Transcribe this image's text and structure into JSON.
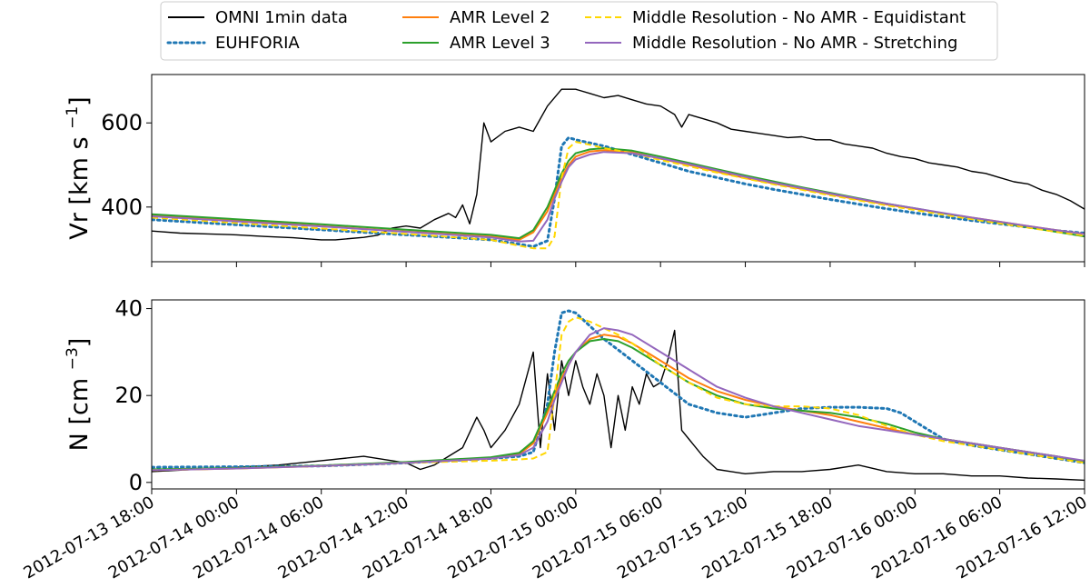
{
  "chart_data": {
    "type": "line",
    "legend": {
      "placement": "top-center",
      "entries": [
        {
          "label": "OMNI 1min data",
          "color": "#000000",
          "style": "solid"
        },
        {
          "label": "EUHFORIA",
          "color": "#1f77b4",
          "style": "dotted"
        },
        {
          "label": "AMR Level 2",
          "color": "#ff7f0e",
          "style": "solid"
        },
        {
          "label": "AMR Level 3",
          "color": "#2ca02c",
          "style": "solid"
        },
        {
          "label": "Middle Resolution - No AMR - Equidistant",
          "color": "#ffd700",
          "style": "dashed"
        },
        {
          "label": "Middle Resolution - No AMR - Stretching",
          "color": "#9467bd",
          "style": "solid"
        }
      ]
    },
    "x_ticks": [
      "2012-07-13 18:00",
      "2012-07-14 00:00",
      "2012-07-14 06:00",
      "2012-07-14 12:00",
      "2012-07-14 18:00",
      "2012-07-15 00:00",
      "2012-07-15 06:00",
      "2012-07-15 12:00",
      "2012-07-15 18:00",
      "2012-07-16 00:00",
      "2012-07-16 06:00",
      "2012-07-16 12:00"
    ],
    "x_unit_hours": [
      0,
      6,
      12,
      18,
      24,
      30,
      36,
      42,
      48,
      54,
      60,
      66
    ],
    "xlim_hours": [
      0,
      66
    ],
    "panels": [
      {
        "ylabel": "Vr [km s",
        "ylabel_sup": "−1",
        "ylabel_end": "]",
        "ylim": [
          270,
          715
        ],
        "yticks": [
          400,
          600
        ],
        "series": [
          {
            "name": "OMNI 1min data",
            "x": [
              0,
              2,
              4,
              6,
              8,
              10,
              12,
              13,
              15,
              16,
              17,
              18,
              19,
              20,
              21,
              21.5,
              22,
              22.5,
              23,
              23.5,
              24,
              25,
              26,
              27,
              28,
              29,
              30,
              31,
              32,
              33,
              34,
              35,
              36,
              37,
              37.5,
              38,
              39,
              40,
              41,
              42,
              43,
              44,
              45,
              46,
              47,
              48,
              49,
              50,
              51,
              52,
              53,
              54,
              55,
              56,
              57,
              58,
              59,
              60,
              61,
              62,
              63,
              64,
              65,
              66
            ],
            "y": [
              343,
              338,
              336,
              334,
              330,
              327,
              322,
              322,
              328,
              333,
              350,
              355,
              350,
              370,
              385,
              375,
              405,
              360,
              430,
              600,
              555,
              580,
              590,
              580,
              640,
              680,
              680,
              670,
              660,
              665,
              655,
              645,
              640,
              620,
              590,
              620,
              610,
              600,
              585,
              580,
              575,
              570,
              565,
              567,
              560,
              560,
              550,
              545,
              540,
              528,
              520,
              515,
              505,
              500,
              495,
              485,
              480,
              470,
              460,
              455,
              440,
              430,
              415,
              395
            ]
          },
          {
            "name": "EUHFORIA",
            "x": [
              0,
              6,
              12,
              18,
              24,
              26,
              27,
              28,
              28.5,
              29,
              29.5,
              30,
              32,
              34,
              36,
              38,
              40,
              42,
              44,
              46,
              48,
              50,
              52,
              54,
              56,
              58,
              60,
              62,
              64,
              66
            ],
            "y": [
              370,
              358,
              346,
              334,
              322,
              312,
              306,
              320,
              420,
              545,
              565,
              560,
              545,
              525,
              505,
              485,
              470,
              455,
              442,
              430,
              418,
              407,
              396,
              386,
              377,
              368,
              360,
              352,
              344,
              338
            ]
          },
          {
            "name": "AMR Level 2",
            "x": [
              0,
              6,
              12,
              18,
              24,
              26,
              27,
              28,
              28.5,
              29,
              29.5,
              30,
              31,
              32,
              34,
              36,
              38,
              40,
              42,
              44,
              46,
              48,
              50,
              52,
              54,
              56,
              58,
              60,
              62,
              64,
              66
            ],
            "y": [
              380,
              368,
              355,
              342,
              330,
              322,
              340,
              390,
              430,
              470,
              500,
              520,
              532,
              535,
              530,
              515,
              500,
              484,
              469,
              456,
              443,
              430,
              418,
              406,
              396,
              385,
              375,
              365,
              355,
              345,
              336
            ]
          },
          {
            "name": "AMR Level 3",
            "x": [
              0,
              6,
              12,
              18,
              24,
              26,
              27,
              28,
              28.5,
              29,
              29.5,
              30,
              31,
              32,
              34,
              36,
              38,
              40,
              42,
              44,
              46,
              48,
              50,
              52,
              54,
              56,
              58,
              60,
              62,
              64,
              66
            ],
            "y": [
              383,
              371,
              359,
              346,
              334,
              326,
              345,
              400,
              440,
              480,
              510,
              528,
              537,
              540,
              534,
              520,
              505,
              490,
              475,
              461,
              447,
              434,
              421,
              408,
              397,
              385,
              374,
              363,
              352,
              341,
              330
            ]
          },
          {
            "name": "Middle Resolution - No AMR - Equidistant",
            "x": [
              0,
              6,
              12,
              18,
              24,
              26,
              27,
              28,
              28.5,
              29,
              29.5,
              30,
              31,
              32,
              34,
              36,
              38,
              40,
              42,
              44,
              46,
              48,
              50,
              52,
              54,
              56,
              58,
              60,
              62,
              64,
              66
            ],
            "y": [
              375,
              362,
              349,
              336,
              322,
              308,
              302,
              302,
              330,
              470,
              540,
              555,
              548,
              540,
              528,
              512,
              497,
              482,
              468,
              454,
              441,
              428,
              416,
              404,
              393,
              382,
              371,
              361,
              351,
              341,
              332
            ]
          },
          {
            "name": "Middle Resolution - No AMR - Stretching",
            "x": [
              0,
              6,
              12,
              18,
              24,
              26,
              27,
              28,
              28.5,
              29,
              29.5,
              30,
              31,
              32,
              34,
              36,
              38,
              40,
              42,
              44,
              46,
              48,
              50,
              52,
              54,
              56,
              58,
              60,
              62,
              64,
              66
            ],
            "y": [
              378,
              366,
              354,
              341,
              328,
              318,
              320,
              370,
              420,
              460,
              495,
              513,
              525,
              531,
              528,
              516,
              502,
              487,
              472,
              458,
              445,
              432,
              420,
              408,
              397,
              386,
              375,
              365,
              355,
              345,
              336
            ]
          }
        ]
      },
      {
        "ylabel": "N [cm",
        "ylabel_sup": "−3",
        "ylabel_end": "]",
        "ylim": [
          -1.5,
          42
        ],
        "yticks": [
          0,
          20,
          40
        ],
        "series": [
          {
            "name": "OMNI 1min data",
            "x": [
              0,
              3,
              6,
              9,
              12,
              15,
              17,
              18,
              19,
              20,
              21,
              22,
              23,
              23.5,
              24,
              25,
              26,
              27,
              27.5,
              28,
              28.5,
              29,
              29.5,
              30,
              30.5,
              31,
              31.5,
              32,
              32.5,
              33,
              33.5,
              34,
              34.5,
              35,
              35.5,
              36,
              36.5,
              37,
              37.5,
              38,
              38.5,
              39,
              40,
              41,
              42,
              44,
              46,
              48,
              50,
              52,
              54,
              56,
              58,
              60,
              62,
              64,
              66
            ],
            "y": [
              2.5,
              3,
              3.5,
              4,
              5,
              6,
              5,
              4.5,
              3,
              4,
              6,
              8,
              15,
              12,
              8,
              12,
              18,
              30,
              8,
              25,
              12,
              28,
              20,
              28,
              22,
              18,
              25,
              20,
              8,
              20,
              12,
              22,
              18,
              25,
              22,
              23,
              28,
              35,
              12,
              10,
              8,
              6,
              3,
              2.5,
              2,
              2.5,
              2.5,
              3,
              4,
              2.5,
              2,
              2,
              1.5,
              1.5,
              1,
              0.8,
              0.5
            ]
          },
          {
            "name": "EUHFORIA",
            "x": [
              0,
              6,
              12,
              18,
              24,
              26,
              27,
              28,
              28.5,
              29,
              29.5,
              30,
              31,
              32,
              34,
              36,
              38,
              40,
              42,
              44,
              46,
              48,
              50,
              52,
              53,
              54,
              55,
              56,
              58,
              60,
              62,
              64,
              66
            ],
            "y": [
              3.5,
              3.6,
              3.8,
              4.5,
              5.5,
              6,
              7,
              18,
              30,
              39,
              39.5,
              39,
              36,
              33,
              28,
              23,
              18,
              16,
              15,
              16,
              17,
              17.3,
              17.3,
              17,
              16,
              14,
              12,
              10,
              8.5,
              7.5,
              6.5,
              5.5,
              4.5
            ]
          },
          {
            "name": "AMR Level 2",
            "x": [
              0,
              6,
              12,
              18,
              24,
              26,
              27,
              28,
              28.5,
              29,
              29.5,
              30,
              31,
              32,
              33,
              34,
              36,
              38,
              40,
              42,
              44,
              46,
              48,
              50,
              52,
              54,
              56,
              58,
              60,
              62,
              64,
              66
            ],
            "y": [
              2.8,
              3.2,
              3.8,
              4.5,
              5.5,
              6.5,
              9,
              16,
              20,
              24,
              27,
              30,
              33,
              34,
              33.5,
              32,
              28,
              24,
              21,
              19,
              17.5,
              16.5,
              15.5,
              14,
              12.5,
              11,
              10,
              9,
              8,
              7,
              6,
              4.8
            ]
          },
          {
            "name": "AMR Level 3",
            "x": [
              0,
              6,
              12,
              18,
              24,
              26,
              27,
              28,
              28.5,
              29,
              29.5,
              30,
              31,
              32,
              33,
              34,
              36,
              38,
              40,
              42,
              44,
              46,
              48,
              50,
              52,
              54,
              56,
              58,
              60,
              62,
              64,
              66
            ],
            "y": [
              3,
              3.3,
              3.9,
              4.7,
              5.8,
              6.8,
              9.5,
              17,
              21,
              25,
              28,
              30,
              32.5,
              33,
              32.5,
              31,
              27,
              23,
              20,
              18,
              17,
              16.5,
              16,
              15,
              13.5,
              11.5,
              10,
              9,
              8,
              7,
              6,
              4.8
            ]
          },
          {
            "name": "Middle Resolution - No AMR - Equidistant",
            "x": [
              0,
              6,
              12,
              18,
              24,
              26,
              27,
              28,
              28.5,
              29,
              29.5,
              30,
              31,
              32,
              33,
              34,
              36,
              38,
              40,
              42,
              44,
              46,
              48,
              50,
              52,
              54,
              56,
              58,
              60,
              62,
              64,
              66
            ],
            "y": [
              2.8,
              3.2,
              3.8,
              4.5,
              5,
              5.3,
              5.5,
              7,
              20,
              34,
              37,
              38,
              37,
              35.5,
              34,
              32,
              27,
              23,
              19.5,
              18,
              17.5,
              17.5,
              17,
              15.5,
              13,
              11,
              9.5,
              8.5,
              7.5,
              6.5,
              5.5,
              4.5
            ]
          },
          {
            "name": "Middle Resolution - No AMR - Stretching",
            "x": [
              0,
              6,
              12,
              18,
              24,
              26,
              27,
              28,
              28.5,
              29,
              29.5,
              30,
              31,
              32,
              33,
              34,
              36,
              38,
              40,
              42,
              44,
              46,
              48,
              50,
              52,
              54,
              56,
              58,
              60,
              62,
              64,
              66
            ],
            "y": [
              2.8,
              3.2,
              3.8,
              4.5,
              5.5,
              6.3,
              8,
              14,
              19,
              23,
              27,
              30,
              34,
              35.5,
              35,
              34,
              30,
              26,
              22,
              19.5,
              17.5,
              16,
              14.5,
              13,
              12,
              11,
              10,
              9,
              8,
              7,
              6,
              5
            ]
          }
        ]
      }
    ]
  }
}
